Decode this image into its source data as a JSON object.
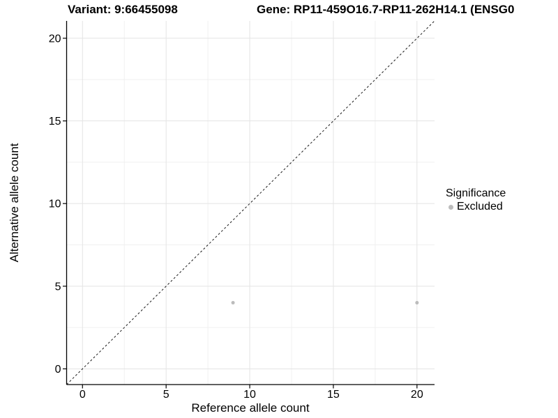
{
  "chart_data": {
    "type": "scatter",
    "title_variant": "Variant: 9:66455098",
    "title_gene": "Gene: RP11-459O16.7-RP11-262H14.1 (ENSG0",
    "xlabel": "Reference allele count",
    "ylabel": "Alternative allele count",
    "xlim": [
      -0.95,
      21.05
    ],
    "ylim": [
      -0.95,
      21.05
    ],
    "xticks": [
      0,
      5,
      10,
      15,
      20
    ],
    "yticks": [
      0,
      5,
      10,
      15,
      20
    ],
    "x_minor_ticks": [
      2.5,
      7.5,
      12.5,
      17.5
    ],
    "y_minor_ticks": [
      2.5,
      7.5,
      12.5,
      17.5
    ],
    "grid": "major and minor gridlines, white panel background",
    "identity_line": {
      "equation": "y = x",
      "style": "dashed"
    },
    "series": [
      {
        "name": "Excluded",
        "marker": "circle",
        "color": "#bcbcbc",
        "points": [
          [
            9,
            4
          ],
          [
            20,
            4
          ]
        ]
      }
    ],
    "legend": {
      "title": "Significance",
      "position": "right",
      "entries": [
        {
          "label": "Excluded",
          "color": "#bcbcbc"
        }
      ]
    }
  },
  "colors": {
    "background": "#ffffff",
    "axis": "#000000",
    "grid_major": "#e4e4e4",
    "grid_minor": "#f0f0f0",
    "identity_line": "#1a1a1a",
    "point": "#bcbcbc",
    "text": "#000000"
  }
}
